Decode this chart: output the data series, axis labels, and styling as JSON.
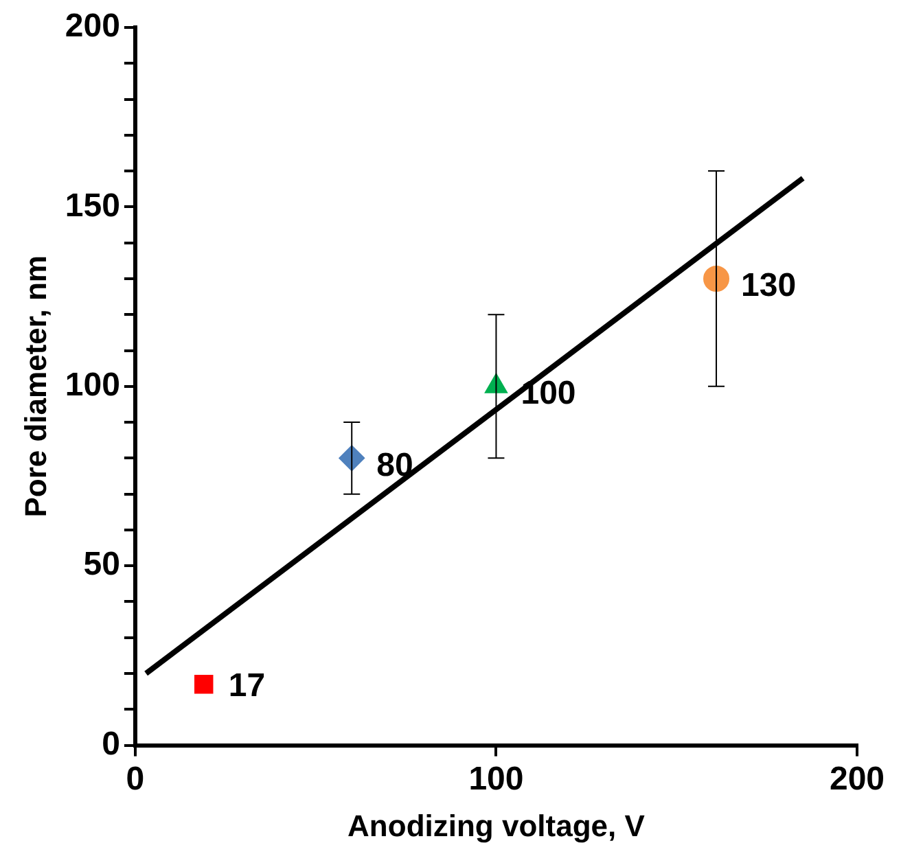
{
  "chart_data": {
    "type": "scatter",
    "xlabel": "Anodizing voltage, V",
    "ylabel": "Pore diameter, nm",
    "xlim": [
      0,
      200
    ],
    "xticks": [
      0,
      100,
      200
    ],
    "ylim": [
      0,
      200
    ],
    "yticks": [
      0,
      {
        "value": 10,
        "label": null
      },
      {
        "value": 20,
        "label": null
      },
      {
        "value": 30,
        "label": null
      },
      {
        "value": 40,
        "label": null
      },
      50,
      {
        "value": 60,
        "label": null
      },
      {
        "value": 70,
        "label": null
      },
      {
        "value": 80,
        "label": null
      },
      {
        "value": 90,
        "label": null
      },
      100,
      {
        "value": 110,
        "label": null
      },
      {
        "value": 120,
        "label": null
      },
      {
        "value": 130,
        "label": null
      },
      {
        "value": 140,
        "label": null
      },
      150,
      {
        "value": 160,
        "label": null
      },
      {
        "value": 170,
        "label": null
      },
      {
        "value": 180,
        "label": null
      },
      {
        "value": 190,
        "label": null
      },
      200
    ],
    "grid": false,
    "legend": false,
    "series": [
      {
        "marker": "square",
        "color": "#ff0000",
        "x": [
          19
        ],
        "values": [
          17
        ],
        "value_labels": [
          "17"
        ]
      },
      {
        "marker": "diamond",
        "color": "#4f81bd",
        "x": [
          60
        ],
        "values": [
          80
        ],
        "errors": [
          10
        ],
        "value_labels": [
          "80"
        ]
      },
      {
        "marker": "triangle",
        "color": "#00b050",
        "x": [
          100
        ],
        "values": [
          100
        ],
        "errors": [
          20
        ],
        "value_labels": [
          "100"
        ]
      },
      {
        "marker": "circle",
        "color": "#f79646",
        "x": [
          161
        ],
        "values": [
          130
        ],
        "errors": [
          [
            100,
            160
          ]
        ],
        "value_labels": [
          "130"
        ]
      },
      {
        "type": "line",
        "marker": "none",
        "line_style": "solid",
        "color": "#000000",
        "x": [
          3,
          185
        ],
        "values": [
          20,
          158
        ]
      }
    ]
  }
}
